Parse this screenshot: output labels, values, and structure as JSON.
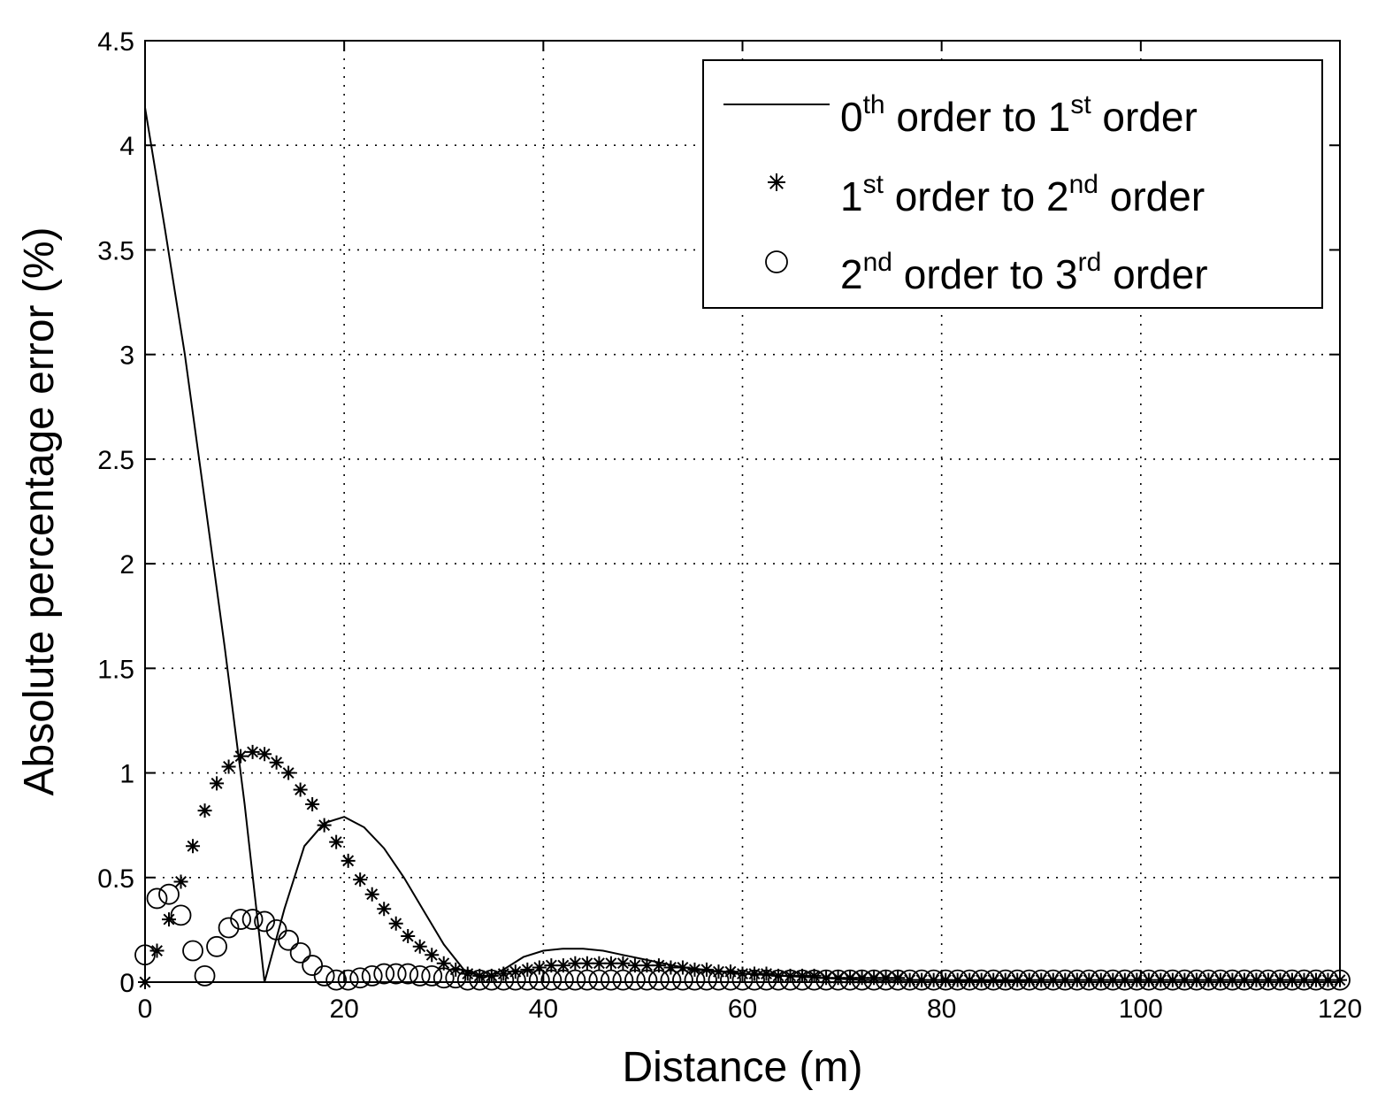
{
  "chart_data": {
    "type": "line",
    "xlabel": "Distance (m)",
    "ylabel": "Absolute percentage error (%)",
    "xlim": [
      0,
      120
    ],
    "ylim": [
      0,
      4.5
    ],
    "xticks": [
      0,
      20,
      40,
      60,
      80,
      100,
      120
    ],
    "yticks": [
      0,
      0.5,
      1,
      1.5,
      2,
      2.5,
      3,
      3.5,
      4,
      4.5
    ],
    "xtick_labels": [
      "0",
      "20",
      "40",
      "60",
      "80",
      "100",
      "120"
    ],
    "ytick_labels": [
      "0",
      "0.5",
      "1",
      "1.5",
      "2",
      "2.5",
      "3",
      "3.5",
      "4",
      "4.5"
    ],
    "grid": true,
    "legend_position": "top-right",
    "series": [
      {
        "legend": [
          {
            "t": "0"
          },
          {
            "t": "th",
            "sup": true
          },
          {
            "t": " order to 1"
          },
          {
            "t": "st",
            "sup": true
          },
          {
            "t": " order"
          }
        ],
        "marker": "line",
        "x": [
          0,
          2,
          4,
          6,
          8,
          10,
          12,
          14,
          16,
          18,
          20,
          22,
          24,
          26,
          28,
          30,
          32,
          34,
          36,
          38,
          40,
          42,
          44,
          46,
          48,
          50,
          52,
          54,
          56,
          58,
          60,
          64,
          68,
          72,
          80,
          90,
          100,
          110,
          120
        ],
        "y": [
          4.18,
          3.6,
          3.0,
          2.3,
          1.6,
          0.85,
          0.0,
          0.35,
          0.65,
          0.76,
          0.79,
          0.74,
          0.64,
          0.5,
          0.34,
          0.18,
          0.06,
          0.02,
          0.06,
          0.12,
          0.15,
          0.16,
          0.16,
          0.15,
          0.13,
          0.11,
          0.09,
          0.07,
          0.06,
          0.05,
          0.04,
          0.03,
          0.02,
          0.01,
          0.01,
          0.0,
          0.0,
          0.0,
          0.0
        ]
      },
      {
        "legend": [
          {
            "t": "1"
          },
          {
            "t": "st",
            "sup": true
          },
          {
            "t": " order to 2"
          },
          {
            "t": "nd",
            "sup": true
          },
          {
            "t": " order"
          }
        ],
        "marker": "star",
        "x": [
          0,
          1.2,
          2.4,
          3.6,
          4.8,
          6.0,
          7.2,
          8.4,
          9.6,
          10.8,
          12.0,
          13.2,
          14.4,
          15.6,
          16.8,
          18.0,
          19.2,
          20.4,
          21.6,
          22.8,
          24.0,
          25.2,
          26.4,
          27.6,
          28.8,
          30.0,
          31.2,
          32.4,
          33.6,
          34.8,
          36.0,
          37.2,
          38.4,
          39.6,
          40.8,
          42.0,
          43.2,
          44.4,
          45.6,
          46.8,
          48.0,
          49.2,
          50.4,
          51.6,
          52.8,
          54.0,
          55.2,
          56.4,
          57.6,
          58.8,
          60.0,
          61.2,
          62.4,
          63.6,
          64.8,
          66.0,
          67.2,
          68.4,
          69.6,
          70.8,
          72.0,
          73.2,
          74.4,
          75.6,
          76.8,
          78.0,
          79.2,
          80.4,
          81.6,
          82.8,
          84.0,
          85.2,
          86.4,
          87.6,
          88.8,
          90.0,
          91.2,
          92.4,
          93.6,
          94.8,
          96.0,
          97.2,
          98.4,
          99.6,
          100.8,
          102.0,
          103.2,
          104.4,
          105.6,
          106.8,
          108.0,
          109.2,
          110.4,
          111.6,
          112.8,
          114.0,
          115.2,
          116.4,
          117.6,
          118.8,
          120.0
        ],
        "y": [
          0.0,
          0.15,
          0.3,
          0.48,
          0.65,
          0.82,
          0.95,
          1.03,
          1.08,
          1.1,
          1.09,
          1.05,
          1.0,
          0.92,
          0.85,
          0.75,
          0.67,
          0.58,
          0.49,
          0.42,
          0.35,
          0.28,
          0.22,
          0.17,
          0.13,
          0.09,
          0.06,
          0.04,
          0.03,
          0.03,
          0.04,
          0.05,
          0.06,
          0.07,
          0.08,
          0.08,
          0.09,
          0.09,
          0.09,
          0.09,
          0.09,
          0.08,
          0.08,
          0.08,
          0.07,
          0.07,
          0.06,
          0.06,
          0.05,
          0.05,
          0.04,
          0.04,
          0.04,
          0.03,
          0.03,
          0.03,
          0.03,
          0.02,
          0.02,
          0.02,
          0.02,
          0.02,
          0.02,
          0.02,
          0.01,
          0.01,
          0.01,
          0.01,
          0.01,
          0.01,
          0.01,
          0.01,
          0.01,
          0.01,
          0.01,
          0.01,
          0.01,
          0.01,
          0.01,
          0.01,
          0.01,
          0.01,
          0.01,
          0.01,
          0.01,
          0.01,
          0.01,
          0.01,
          0.01,
          0.01,
          0.01,
          0.01,
          0.01,
          0.01,
          0.01,
          0.01,
          0.01,
          0.01,
          0.01,
          0.01,
          0.01
        ]
      },
      {
        "legend": [
          {
            "t": "2"
          },
          {
            "t": "nd",
            "sup": true
          },
          {
            "t": " order to 3"
          },
          {
            "t": "rd",
            "sup": true
          },
          {
            "t": " order"
          }
        ],
        "marker": "circle",
        "x": [
          0,
          1.2,
          2.4,
          3.6,
          4.8,
          6.0,
          7.2,
          8.4,
          9.6,
          10.8,
          12.0,
          13.2,
          14.4,
          15.6,
          16.8,
          18.0,
          19.2,
          20.4,
          21.6,
          22.8,
          24.0,
          25.2,
          26.4,
          27.6,
          28.8,
          30.0,
          31.2,
          32.4,
          33.6,
          34.8,
          36.0,
          37.2,
          38.4,
          39.6,
          40.8,
          42.0,
          43.2,
          44.4,
          45.6,
          46.8,
          48.0,
          49.2,
          50.4,
          51.6,
          52.8,
          54.0,
          55.2,
          56.4,
          57.6,
          58.8,
          60.0,
          61.2,
          62.4,
          63.6,
          64.8,
          66.0,
          67.2,
          68.4,
          69.6,
          70.8,
          72.0,
          73.2,
          74.4,
          75.6,
          76.8,
          78.0,
          79.2,
          80.4,
          81.6,
          82.8,
          84.0,
          85.2,
          86.4,
          87.6,
          88.8,
          90.0,
          91.2,
          92.4,
          93.6,
          94.8,
          96.0,
          97.2,
          98.4,
          99.6,
          100.8,
          102.0,
          103.2,
          104.4,
          105.6,
          106.8,
          108.0,
          109.2,
          110.4,
          111.6,
          112.8,
          114.0,
          115.2,
          116.4,
          117.6,
          118.8,
          120.0
        ],
        "y": [
          0.13,
          0.4,
          0.42,
          0.32,
          0.15,
          0.03,
          0.17,
          0.26,
          0.3,
          0.3,
          0.29,
          0.25,
          0.2,
          0.14,
          0.08,
          0.03,
          0.01,
          0.01,
          0.02,
          0.03,
          0.04,
          0.04,
          0.04,
          0.03,
          0.03,
          0.02,
          0.02,
          0.01,
          0.01,
          0.01,
          0.01,
          0.01,
          0.01,
          0.01,
          0.01,
          0.01,
          0.01,
          0.01,
          0.01,
          0.01,
          0.01,
          0.01,
          0.01,
          0.01,
          0.01,
          0.01,
          0.01,
          0.01,
          0.01,
          0.01,
          0.01,
          0.01,
          0.01,
          0.01,
          0.01,
          0.01,
          0.01,
          0.01,
          0.01,
          0.01,
          0.01,
          0.01,
          0.01,
          0.01,
          0.01,
          0.01,
          0.01,
          0.01,
          0.01,
          0.01,
          0.01,
          0.01,
          0.01,
          0.01,
          0.01,
          0.01,
          0.01,
          0.01,
          0.01,
          0.01,
          0.01,
          0.01,
          0.01,
          0.01,
          0.01,
          0.01,
          0.01,
          0.01,
          0.01,
          0.01,
          0.01,
          0.01,
          0.01,
          0.01,
          0.01,
          0.01,
          0.01,
          0.01,
          0.01,
          0.01,
          0.01
        ]
      }
    ]
  }
}
